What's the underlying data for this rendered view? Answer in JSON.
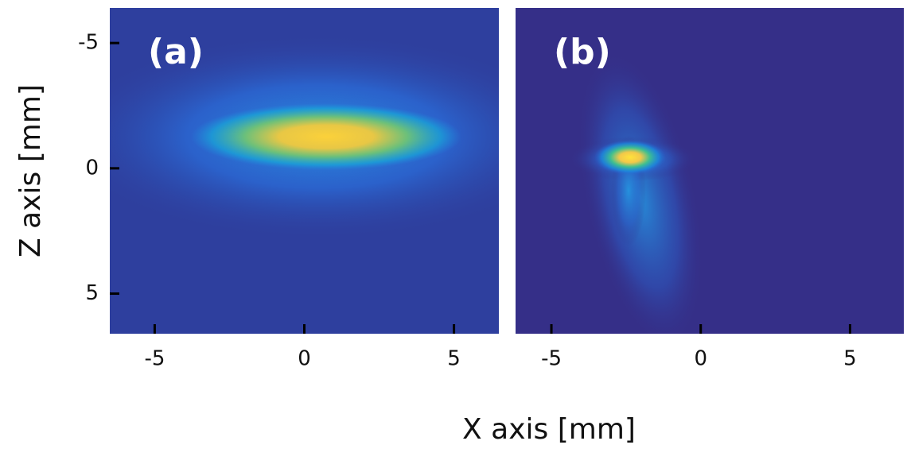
{
  "chart_data": [
    {
      "type": "image",
      "label": "(a)",
      "xlim": [
        -6.5,
        6.5
      ],
      "xticks": [
        -5,
        0,
        5
      ],
      "ylim": [
        -6.4,
        6.6
      ],
      "yticks": [
        -5,
        0,
        5
      ]
    },
    {
      "type": "image",
      "label": "(b)",
      "xlim": [
        -6.2,
        6.8
      ],
      "xticks": [
        -5,
        0,
        5
      ],
      "ylim": [
        -6.4,
        6.6
      ]
    }
  ],
  "xlabel": "X axis [mm]",
  "ylabel": "Z axis [mm]"
}
